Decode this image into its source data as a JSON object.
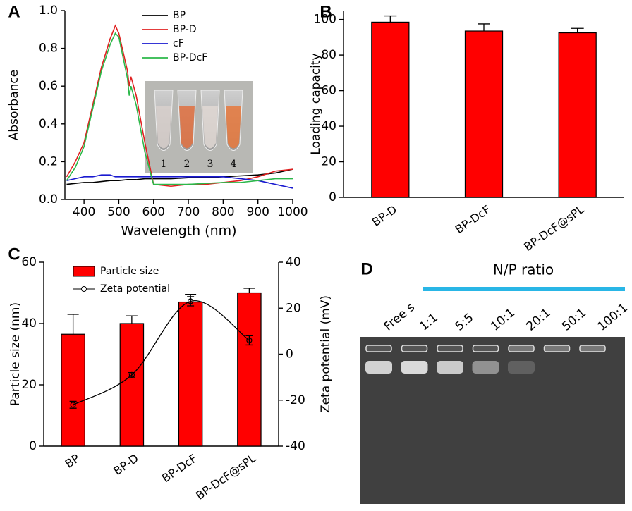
{
  "chart_data": [
    {
      "type": "line",
      "panel_label": "A",
      "xlabel": "Wavelength (nm)",
      "ylabel": "Absorbance",
      "x": [
        350,
        375,
        400,
        425,
        450,
        475,
        490,
        500,
        525,
        530,
        535,
        550,
        575,
        600,
        650,
        700,
        750,
        800,
        850,
        900,
        950,
        1000
      ],
      "series": [
        {
          "name": "BP",
          "color": "#000000",
          "values": [
            0.08,
            0.085,
            0.09,
            0.09,
            0.095,
            0.1,
            0.1,
            0.1,
            0.105,
            0.105,
            0.105,
            0.105,
            0.11,
            0.11,
            0.11,
            0.115,
            0.115,
            0.12,
            0.125,
            0.13,
            0.14,
            0.16
          ]
        },
        {
          "name": "BP-D",
          "color": "#e02020",
          "values": [
            0.12,
            0.2,
            0.3,
            0.5,
            0.7,
            0.85,
            0.92,
            0.88,
            0.68,
            0.6,
            0.65,
            0.55,
            0.3,
            0.08,
            0.07,
            0.08,
            0.08,
            0.09,
            0.1,
            0.12,
            0.15,
            0.16
          ]
        },
        {
          "name": "cF",
          "color": "#1a1ad0",
          "values": [
            0.1,
            0.11,
            0.12,
            0.12,
            0.13,
            0.13,
            0.12,
            0.12,
            0.12,
            0.12,
            0.12,
            0.12,
            0.12,
            0.12,
            0.12,
            0.12,
            0.12,
            0.12,
            0.11,
            0.1,
            0.08,
            0.06
          ]
        },
        {
          "name": "BP-DcF",
          "color": "#2cb84a",
          "values": [
            0.1,
            0.17,
            0.28,
            0.48,
            0.68,
            0.82,
            0.88,
            0.86,
            0.64,
            0.55,
            0.6,
            0.5,
            0.25,
            0.08,
            0.08,
            0.08,
            0.085,
            0.09,
            0.09,
            0.1,
            0.11,
            0.11
          ]
        }
      ],
      "xlim": [
        345,
        1000
      ],
      "xticks": [
        400,
        500,
        600,
        700,
        800,
        900,
        1000
      ],
      "ylim": [
        0,
        1
      ],
      "yticks": [
        {
          "value": 0,
          "label": "0.0"
        },
        0.2,
        0.4,
        0.6,
        0.8,
        {
          "value": 1,
          "label": "1.0"
        }
      ],
      "inset_labels": [
        "1",
        "2",
        "3",
        "4"
      ]
    },
    {
      "type": "bar",
      "panel_label": "B",
      "ylabel": "Loading capacity",
      "categories": [
        "BP-D",
        "BP-DcF",
        "BP-DcF@sPL"
      ],
      "values": [
        98.5,
        93.5,
        92.5
      ],
      "errors": [
        3.5,
        4,
        2.5
      ],
      "color": "#ff0000",
      "ylim": [
        0,
        105
      ],
      "yticks": [
        0,
        20,
        40,
        60,
        80,
        100
      ]
    },
    {
      "type": "combo",
      "panel_label": "C",
      "ylabel": "Particle size (nm)",
      "y2label": "Zeta potential (mV)",
      "categories": [
        "BP",
        "BP-D",
        "BP-DcF",
        "BP-DcF@sPL"
      ],
      "series": [
        {
          "name": "Particle size",
          "color": "#ff0000",
          "values": [
            36.5,
            40,
            47,
            50
          ],
          "errors": [
            6.5,
            2.5,
            2.5,
            1.5
          ]
        },
        {
          "name": "Zeta potential",
          "color": "#000000",
          "axis": "y2",
          "values": [
            -22,
            -9,
            23,
            6
          ],
          "errors": [
            1.5,
            1,
            2,
            2
          ]
        }
      ],
      "ylim": [
        0,
        60
      ],
      "yticks": [
        0,
        20,
        40,
        60
      ],
      "y2lim": [
        -40,
        40
      ],
      "y2ticks": [
        -40,
        -20,
        0,
        20,
        40
      ]
    }
  ],
  "gel": {
    "panel_label": "D",
    "title": "N/P ratio",
    "lanes": [
      "Free s",
      "1:1",
      "5:5",
      "10:1",
      "20:1",
      "50:1",
      "100:1"
    ]
  }
}
